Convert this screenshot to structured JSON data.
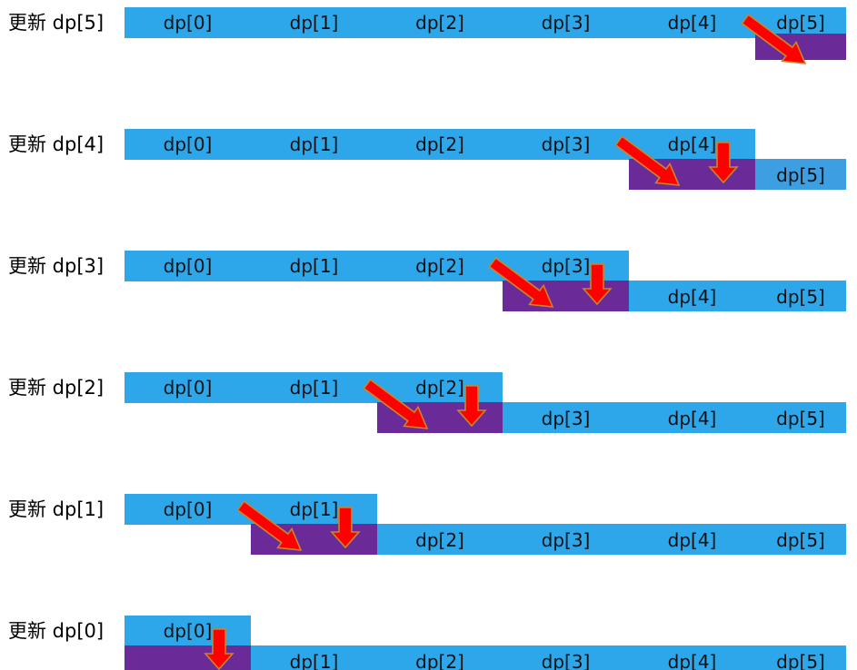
{
  "colors": {
    "cell": "#2ea6ea",
    "cell_alt": "#3d9ee2",
    "updated": "#6a2a97",
    "arrow_fill": "#ff0000",
    "arrow_stroke": "#c8862a",
    "label": "#000000"
  },
  "cell_labels": [
    "dp[0]",
    "dp[1]",
    "dp[2]",
    "dp[3]",
    "dp[4]",
    "dp[5]"
  ],
  "rows": [
    {
      "label": "更新 dp[5]",
      "updated_index": 5
    },
    {
      "label": "更新 dp[4]",
      "updated_index": 4
    },
    {
      "label": "更新 dp[3]",
      "updated_index": 3
    },
    {
      "label": "更新 dp[2]",
      "updated_index": 2
    },
    {
      "label": "更新 dp[1]",
      "updated_index": 1
    },
    {
      "label": "更新 dp[0]",
      "updated_index": 0
    }
  ]
}
